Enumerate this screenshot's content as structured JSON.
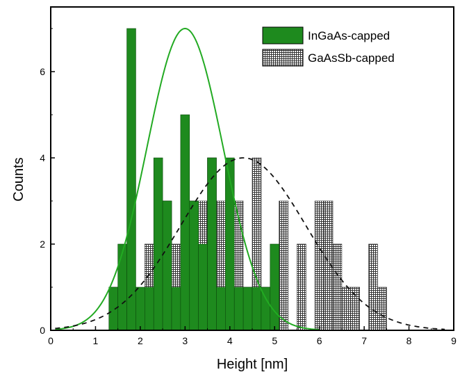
{
  "chart_data": {
    "type": "bar",
    "xlabel": "Height [nm]",
    "ylabel": "Counts",
    "xlim": [
      0,
      9
    ],
    "ylim": [
      0,
      7.5
    ],
    "x_ticks": [
      0,
      1,
      2,
      3,
      4,
      5,
      6,
      7,
      8,
      9
    ],
    "y_ticks": [
      0,
      2,
      4,
      6
    ],
    "bin_width": 0.2,
    "legend_position": "top-right",
    "grid": false,
    "series": [
      {
        "name": "InGaAs-capped",
        "color": "#1e8a1e",
        "pattern": "solid",
        "bins": [
          {
            "x": 1.4,
            "count": 1
          },
          {
            "x": 1.6,
            "count": 2
          },
          {
            "x": 1.8,
            "count": 7
          },
          {
            "x": 2.0,
            "count": 1
          },
          {
            "x": 2.2,
            "count": 1
          },
          {
            "x": 2.4,
            "count": 4
          },
          {
            "x": 2.6,
            "count": 3
          },
          {
            "x": 2.8,
            "count": 1
          },
          {
            "x": 3.0,
            "count": 5
          },
          {
            "x": 3.2,
            "count": 3
          },
          {
            "x": 3.4,
            "count": 2
          },
          {
            "x": 3.6,
            "count": 4
          },
          {
            "x": 3.8,
            "count": 1
          },
          {
            "x": 4.0,
            "count": 4
          },
          {
            "x": 4.2,
            "count": 1
          },
          {
            "x": 4.4,
            "count": 1
          },
          {
            "x": 4.6,
            "count": 1
          },
          {
            "x": 4.8,
            "count": 1
          },
          {
            "x": 5.0,
            "count": 2
          }
        ],
        "fit_curve": {
          "type": "gaussian",
          "style": "solid",
          "peak_x": 3.0,
          "peak_y": 7.0,
          "sigma": 0.85,
          "x_range": [
            0.1,
            6.0
          ]
        }
      },
      {
        "name": "GaAsSb-capped",
        "color": "#555555",
        "pattern": "grid",
        "bins": [
          {
            "x": 1.4,
            "count": 1
          },
          {
            "x": 1.6,
            "count": 1
          },
          {
            "x": 2.2,
            "count": 2
          },
          {
            "x": 2.4,
            "count": 1
          },
          {
            "x": 2.6,
            "count": 3
          },
          {
            "x": 2.8,
            "count": 2
          },
          {
            "x": 3.0,
            "count": 2
          },
          {
            "x": 3.2,
            "count": 3
          },
          {
            "x": 3.4,
            "count": 3
          },
          {
            "x": 3.6,
            "count": 4
          },
          {
            "x": 3.8,
            "count": 3
          },
          {
            "x": 4.0,
            "count": 3
          },
          {
            "x": 4.2,
            "count": 3
          },
          {
            "x": 4.4,
            "count": 1
          },
          {
            "x": 4.6,
            "count": 4
          },
          {
            "x": 4.8,
            "count": 1
          },
          {
            "x": 5.2,
            "count": 3
          },
          {
            "x": 5.6,
            "count": 2
          },
          {
            "x": 6.0,
            "count": 3
          },
          {
            "x": 6.2,
            "count": 3
          },
          {
            "x": 6.4,
            "count": 2
          },
          {
            "x": 6.6,
            "count": 1
          },
          {
            "x": 6.8,
            "count": 1
          },
          {
            "x": 7.2,
            "count": 2
          },
          {
            "x": 7.4,
            "count": 1
          }
        ],
        "fit_curve": {
          "type": "gaussian",
          "style": "dashed",
          "peak_x": 4.3,
          "peak_y": 4.0,
          "sigma": 1.4,
          "x_range": [
            0.1,
            8.8
          ]
        }
      }
    ]
  }
}
